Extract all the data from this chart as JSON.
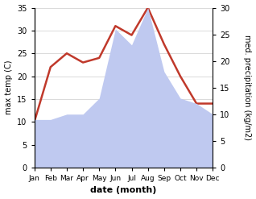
{
  "months": [
    "Jan",
    "Feb",
    "Mar",
    "Apr",
    "May",
    "Jun",
    "Jul",
    "Aug",
    "Sep",
    "Oct",
    "Nov",
    "Dec"
  ],
  "temperature": [
    10,
    22,
    25,
    23,
    24,
    31,
    29,
    35,
    27,
    20,
    14,
    14
  ],
  "precipitation": [
    9,
    9,
    10,
    10,
    13,
    26,
    23,
    30,
    18,
    13,
    12,
    10
  ],
  "temp_color": "#c0392b",
  "precip_fill_color": "#bfc9f0",
  "temp_ylim": [
    0,
    35
  ],
  "precip_ylim": [
    0,
    30
  ],
  "temp_yticks": [
    0,
    5,
    10,
    15,
    20,
    25,
    30,
    35
  ],
  "precip_yticks": [
    0,
    5,
    10,
    15,
    20,
    25,
    30
  ],
  "xlabel": "date (month)",
  "ylabel_left": "max temp (C)",
  "ylabel_right": "med. precipitation (kg/m2)",
  "line_width": 1.8,
  "grid_color": "#cccccc"
}
